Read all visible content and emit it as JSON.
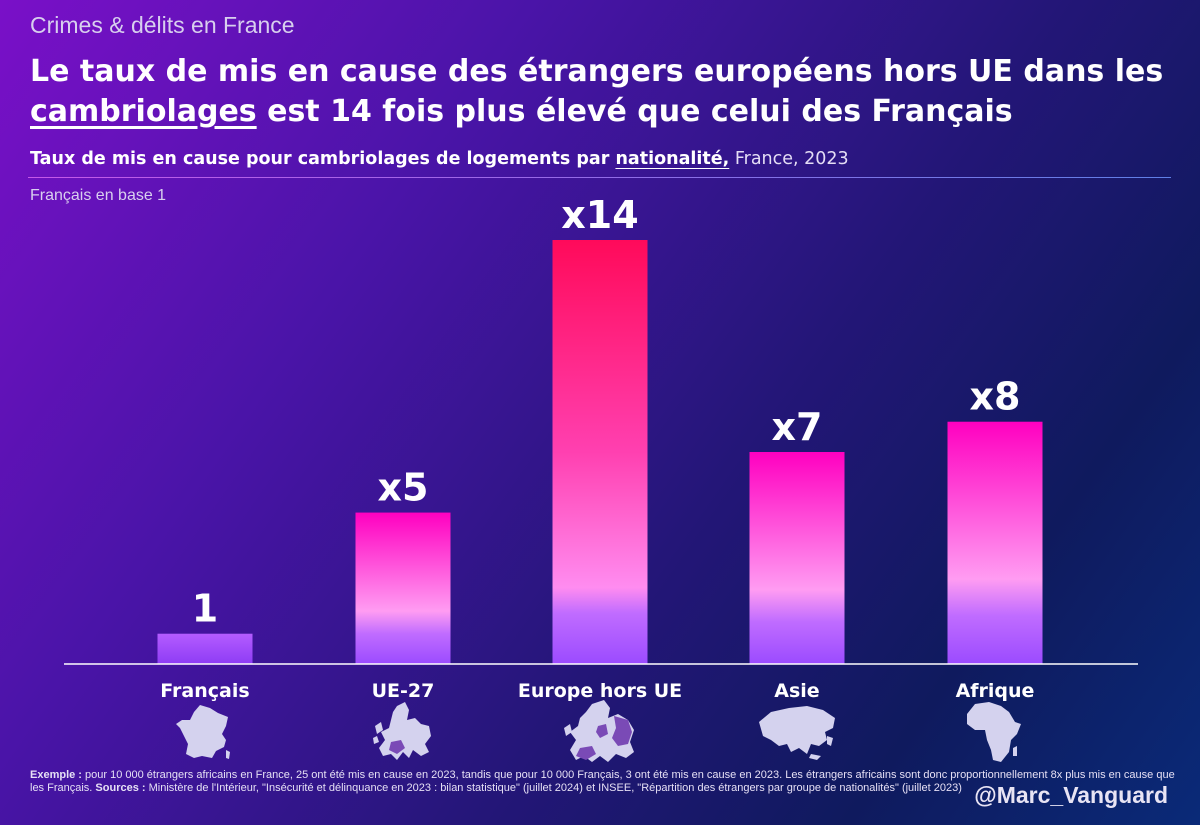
{
  "header": {
    "kicker": "Crimes & délits en France",
    "title_part1": "Le taux de mis en cause des étrangers européens hors UE dans les ",
    "title_underlined": "cambriolages",
    "title_part2": " est 14 fois plus élevé que celui des Français",
    "subtitle_part1": "Taux de mis en cause pour cambriolages de logements par ",
    "subtitle_underlined": "nationalité,",
    "subtitle_part2": " France, 2023",
    "base_note": "Français en base 1"
  },
  "chart_data": {
    "type": "bar",
    "title": "Taux de mis en cause pour cambriolages de logements par nationalité, France, 2023",
    "subtitle": "Français en base 1",
    "categories": [
      "Français",
      "UE-27",
      "Europe hors UE",
      "Asie",
      "Afrique"
    ],
    "values": [
      1,
      5,
      14,
      7,
      8
    ],
    "data_labels": [
      "1",
      "x5",
      "x14",
      "x7",
      "x8"
    ],
    "ylim": [
      0,
      14
    ],
    "grid": false,
    "legend": "none",
    "icons": [
      "france-map-icon",
      "eu27-map-icon",
      "europe-map-icon",
      "asia-map-icon",
      "africa-map-icon"
    ]
  },
  "colors": {
    "bar_bottom": "#9b4bff",
    "bar_mid": "#ff6fe6",
    "bar_top_high": "#ff0a5a",
    "bar_top_low": "#ff00c0",
    "map_fill": "#d4d2ee",
    "map_highlight": "#7a4ab6"
  },
  "footer": {
    "example_label": "Exemple :",
    "example_text": " pour 10 000 étrangers africains en France, 25 ont été mis en cause en 2023, tandis que pour 10 000 Français, 3 ont été mis en cause en 2023. Les étrangers africains sont donc proportionnellement 8x plus mis en cause que les Français. ",
    "sources_label": "Sources :",
    "sources_text": " Ministère de l'Intérieur, \"Insécurité et délinquance en 2023 : bilan statistique\" (juillet 2024) et INSEE, \"Répartition des étrangers par groupe de nationalités\" (juillet 2023)",
    "handle": "@Marc_Vanguard"
  }
}
